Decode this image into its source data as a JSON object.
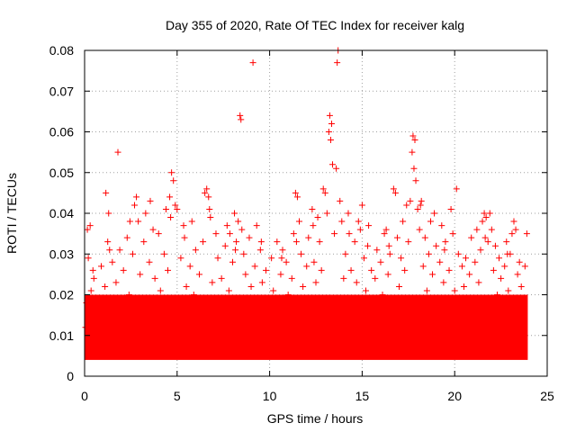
{
  "chart_data": {
    "type": "scatter",
    "title": "Day 355 of 2020, Rate Of TEC Index for receiver kalg",
    "xlabel": "GPS time / hours",
    "ylabel": "ROTI / TECUs",
    "xlim": [
      0,
      25
    ],
    "ylim": [
      0,
      0.08
    ],
    "xticks": [
      0,
      5,
      10,
      15,
      20,
      25
    ],
    "xtick_labels": [
      "0",
      "5",
      "10",
      "15",
      "20",
      "25"
    ],
    "yticks": [
      0,
      0.01,
      0.02,
      0.03,
      0.04,
      0.05,
      0.06,
      0.07,
      0.08
    ],
    "ytick_labels": [
      "0",
      "0.01",
      "0.02",
      "0.03",
      "0.04",
      "0.05",
      "0.06",
      "0.07",
      "0.08"
    ],
    "grid": true,
    "marker": "+",
    "series": [
      {
        "name": "ROTI",
        "color": "#ff0000",
        "points": [
          [
            0.05,
            0.012
          ],
          [
            0.1,
            0.018
          ],
          [
            0.15,
            0.036
          ],
          [
            0.2,
            0.029
          ],
          [
            0.25,
            0.009
          ],
          [
            0.3,
            0.037
          ],
          [
            0.35,
            0.021
          ],
          [
            0.4,
            0.011
          ],
          [
            0.5,
            0.024
          ],
          [
            0.6,
            0.015
          ],
          [
            0.7,
            0.008
          ],
          [
            0.8,
            0.019
          ],
          [
            0.9,
            0.027
          ],
          [
            1.0,
            0.013
          ],
          [
            1.1,
            0.022
          ],
          [
            1.15,
            0.045
          ],
          [
            1.25,
            0.033
          ],
          [
            1.3,
            0.04
          ],
          [
            1.4,
            0.016
          ],
          [
            1.5,
            0.028
          ],
          [
            1.6,
            0.01
          ],
          [
            1.7,
            0.023
          ],
          [
            1.8,
            0.055
          ],
          [
            1.9,
            0.031
          ],
          [
            2.0,
            0.017
          ],
          [
            2.1,
            0.026
          ],
          [
            2.2,
            0.012
          ],
          [
            2.3,
            0.034
          ],
          [
            2.4,
            0.02
          ],
          [
            2.5,
            0.009
          ],
          [
            2.6,
            0.03
          ],
          [
            2.7,
            0.042
          ],
          [
            2.8,
            0.044
          ],
          [
            2.9,
            0.038
          ],
          [
            3.0,
            0.025
          ],
          [
            3.1,
            0.014
          ],
          [
            3.2,
            0.033
          ],
          [
            3.3,
            0.04
          ],
          [
            3.4,
            0.019
          ],
          [
            3.5,
            0.028
          ],
          [
            3.6,
            0.011
          ],
          [
            3.7,
            0.036
          ],
          [
            3.8,
            0.024
          ],
          [
            3.9,
            0.016
          ],
          [
            4.0,
            0.035
          ],
          [
            4.1,
            0.021
          ],
          [
            4.2,
            0.013
          ],
          [
            4.3,
            0.03
          ],
          [
            4.4,
            0.041
          ],
          [
            4.5,
            0.026
          ],
          [
            4.6,
            0.044
          ],
          [
            4.7,
            0.05
          ],
          [
            4.8,
            0.048
          ],
          [
            4.9,
            0.042
          ],
          [
            5.0,
            0.041
          ],
          [
            5.1,
            0.018
          ],
          [
            5.2,
            0.029
          ],
          [
            5.3,
            0.012
          ],
          [
            5.4,
            0.034
          ],
          [
            5.5,
            0.022
          ],
          [
            5.6,
            0.015
          ],
          [
            5.7,
            0.027
          ],
          [
            5.8,
            0.038
          ],
          [
            5.9,
            0.02
          ],
          [
            6.0,
            0.031
          ],
          [
            6.1,
            0.011
          ],
          [
            6.2,
            0.025
          ],
          [
            6.3,
            0.017
          ],
          [
            6.4,
            0.033
          ],
          [
            6.5,
            0.045
          ],
          [
            6.6,
            0.046
          ],
          [
            6.7,
            0.044
          ],
          [
            6.8,
            0.039
          ],
          [
            6.9,
            0.023
          ],
          [
            7.0,
            0.014
          ],
          [
            7.1,
            0.035
          ],
          [
            7.2,
            0.029
          ],
          [
            7.3,
            0.019
          ],
          [
            7.4,
            0.024
          ],
          [
            7.5,
            0.012
          ],
          [
            7.6,
            0.032
          ],
          [
            7.7,
            0.037
          ],
          [
            7.8,
            0.021
          ],
          [
            7.9,
            0.016
          ],
          [
            8.0,
            0.028
          ],
          [
            8.1,
            0.04
          ],
          [
            8.2,
            0.033
          ],
          [
            8.3,
            0.038
          ],
          [
            8.4,
            0.064
          ],
          [
            8.45,
            0.063
          ],
          [
            8.5,
            0.036
          ],
          [
            8.6,
            0.03
          ],
          [
            8.7,
            0.025
          ],
          [
            8.8,
            0.018
          ],
          [
            8.9,
            0.034
          ],
          [
            9.0,
            0.022
          ],
          [
            9.1,
            0.077
          ],
          [
            9.2,
            0.027
          ],
          [
            9.3,
            0.037
          ],
          [
            9.4,
            0.015
          ],
          [
            9.5,
            0.031
          ],
          [
            9.6,
            0.023
          ],
          [
            9.7,
            0.011
          ],
          [
            9.8,
            0.026
          ],
          [
            9.9,
            0.019
          ],
          [
            10.0,
            0.014
          ],
          [
            10.1,
            0.029
          ],
          [
            10.2,
            0.021
          ],
          [
            10.3,
            0.012
          ],
          [
            10.4,
            0.033
          ],
          [
            10.5,
            0.017
          ],
          [
            10.6,
            0.025
          ],
          [
            10.7,
            0.031
          ],
          [
            10.8,
            0.016
          ],
          [
            10.9,
            0.028
          ],
          [
            11.0,
            0.02
          ],
          [
            11.1,
            0.013
          ],
          [
            11.2,
            0.024
          ],
          [
            11.3,
            0.035
          ],
          [
            11.4,
            0.045
          ],
          [
            11.5,
            0.044
          ],
          [
            11.6,
            0.038
          ],
          [
            11.7,
            0.03
          ],
          [
            11.8,
            0.022
          ],
          [
            11.9,
            0.016
          ],
          [
            12.0,
            0.027
          ],
          [
            12.1,
            0.034
          ],
          [
            12.2,
            0.019
          ],
          [
            12.3,
            0.041
          ],
          [
            12.4,
            0.028
          ],
          [
            12.5,
            0.023
          ],
          [
            12.6,
            0.039
          ],
          [
            12.7,
            0.033
          ],
          [
            12.8,
            0.026
          ],
          [
            12.9,
            0.046
          ],
          [
            13.0,
            0.045
          ],
          [
            13.1,
            0.04
          ],
          [
            13.2,
            0.06
          ],
          [
            13.25,
            0.064
          ],
          [
            13.3,
            0.058
          ],
          [
            13.35,
            0.062
          ],
          [
            13.4,
            0.052
          ],
          [
            13.5,
            0.035
          ],
          [
            13.6,
            0.051
          ],
          [
            13.65,
            0.077
          ],
          [
            13.7,
            0.08
          ],
          [
            13.8,
            0.043
          ],
          [
            13.9,
            0.038
          ],
          [
            14.0,
            0.024
          ],
          [
            14.1,
            0.03
          ],
          [
            14.2,
            0.019
          ],
          [
            14.3,
            0.035
          ],
          [
            14.4,
            0.026
          ],
          [
            14.5,
            0.014
          ],
          [
            14.6,
            0.033
          ],
          [
            14.7,
            0.023
          ],
          [
            14.8,
            0.038
          ],
          [
            14.9,
            0.036
          ],
          [
            15.0,
            0.042
          ],
          [
            15.1,
            0.029
          ],
          [
            15.2,
            0.021
          ],
          [
            15.3,
            0.032
          ],
          [
            15.4,
            0.017
          ],
          [
            15.5,
            0.026
          ],
          [
            15.6,
            0.012
          ],
          [
            15.7,
            0.024
          ],
          [
            15.8,
            0.031
          ],
          [
            15.9,
            0.016
          ],
          [
            16.0,
            0.028
          ],
          [
            16.1,
            0.02
          ],
          [
            16.2,
            0.035
          ],
          [
            16.3,
            0.036
          ],
          [
            16.4,
            0.025
          ],
          [
            16.5,
            0.03
          ],
          [
            16.6,
            0.018
          ],
          [
            16.7,
            0.046
          ],
          [
            16.8,
            0.045
          ],
          [
            16.9,
            0.034
          ],
          [
            17.0,
            0.022
          ],
          [
            17.1,
            0.029
          ],
          [
            17.2,
            0.038
          ],
          [
            17.3,
            0.026
          ],
          [
            17.4,
            0.042
          ],
          [
            17.5,
            0.033
          ],
          [
            17.6,
            0.043
          ],
          [
            17.7,
            0.055
          ],
          [
            17.75,
            0.059
          ],
          [
            17.8,
            0.051
          ],
          [
            17.85,
            0.058
          ],
          [
            17.9,
            0.048
          ],
          [
            18.0,
            0.041
          ],
          [
            18.1,
            0.036
          ],
          [
            18.2,
            0.043
          ],
          [
            18.3,
            0.027
          ],
          [
            18.4,
            0.034
          ],
          [
            18.5,
            0.021
          ],
          [
            18.6,
            0.03
          ],
          [
            18.7,
            0.038
          ],
          [
            18.8,
            0.025
          ],
          [
            18.9,
            0.04
          ],
          [
            19.0,
            0.032
          ],
          [
            19.1,
            0.019
          ],
          [
            19.2,
            0.028
          ],
          [
            19.3,
            0.037
          ],
          [
            19.4,
            0.023
          ],
          [
            19.5,
            0.033
          ],
          [
            19.6,
            0.014
          ],
          [
            19.7,
            0.026
          ],
          [
            19.8,
            0.041
          ],
          [
            19.9,
            0.035
          ],
          [
            20.0,
            0.021
          ],
          [
            20.1,
            0.046
          ],
          [
            20.2,
            0.03
          ],
          [
            20.3,
            0.018
          ],
          [
            20.4,
            0.027
          ],
          [
            20.5,
            0.022
          ],
          [
            20.6,
            0.029
          ],
          [
            20.7,
            0.013
          ],
          [
            20.8,
            0.025
          ],
          [
            20.9,
            0.034
          ],
          [
            21.0,
            0.019
          ],
          [
            21.1,
            0.028
          ],
          [
            21.2,
            0.036
          ],
          [
            21.3,
            0.023
          ],
          [
            21.4,
            0.031
          ],
          [
            21.5,
            0.038
          ],
          [
            21.6,
            0.04
          ],
          [
            21.7,
            0.039
          ],
          [
            21.8,
            0.033
          ],
          [
            21.9,
            0.04
          ],
          [
            22.0,
            0.036
          ],
          [
            22.1,
            0.026
          ],
          [
            22.2,
            0.032
          ],
          [
            22.3,
            0.02
          ],
          [
            22.4,
            0.029
          ],
          [
            22.5,
            0.024
          ],
          [
            22.6,
            0.015
          ],
          [
            22.7,
            0.027
          ],
          [
            22.8,
            0.033
          ],
          [
            22.9,
            0.021
          ],
          [
            23.0,
            0.03
          ],
          [
            23.1,
            0.035
          ],
          [
            23.2,
            0.038
          ],
          [
            23.3,
            0.036
          ],
          [
            23.4,
            0.025
          ],
          [
            23.5,
            0.028
          ],
          [
            23.6,
            0.022
          ],
          [
            23.7,
            0.019
          ],
          [
            23.8,
            0.027
          ],
          [
            23.9,
            0.035
          ],
          [
            1.35,
            0.031
          ],
          [
            2.45,
            0.038
          ],
          [
            3.55,
            0.043
          ],
          [
            4.65,
            0.039
          ],
          [
            6.75,
            0.041
          ],
          [
            7.85,
            0.035
          ],
          [
            9.55,
            0.033
          ],
          [
            10.65,
            0.029
          ],
          [
            12.35,
            0.037
          ],
          [
            14.25,
            0.04
          ],
          [
            15.35,
            0.037
          ],
          [
            16.45,
            0.032
          ],
          [
            18.15,
            0.042
          ],
          [
            19.45,
            0.031
          ],
          [
            21.65,
            0.034
          ],
          [
            22.85,
            0.03
          ],
          [
            0.45,
            0.026
          ],
          [
            5.35,
            0.037
          ],
          [
            8.15,
            0.031
          ],
          [
            11.45,
            0.033
          ]
        ]
      }
    ]
  },
  "dense_band": {
    "note_lower": 0.004,
    "note_upper": 0.02
  }
}
